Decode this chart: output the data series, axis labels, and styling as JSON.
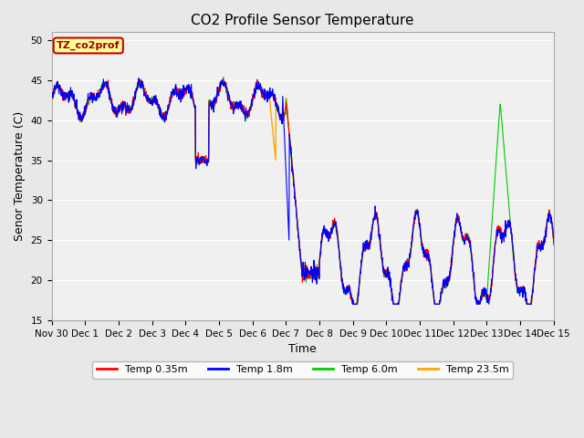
{
  "title": "CO2 Profile Sensor Temperature",
  "xlabel": "Time",
  "ylabel": "Senor Temperature (C)",
  "ylim": [
    15,
    51
  ],
  "yticks": [
    15,
    20,
    25,
    30,
    35,
    40,
    45,
    50
  ],
  "legend_label": "TZ_co2prof",
  "legend_box_color": "#FFFF99",
  "legend_box_edge": "#CC0000",
  "legend_text_color": "#990000",
  "bg_color": "#E8E8E8",
  "plot_bg_color": "#F0F0F0",
  "line_colors": {
    "temp035": "#FF0000",
    "temp18": "#0000FF",
    "temp60": "#00CC00",
    "temp235": "#FFA500"
  },
  "line_labels": {
    "temp035": "Temp 0.35m",
    "temp18": "Temp 1.8m",
    "temp60": "Temp 6.0m",
    "temp235": "Temp 23.5m"
  },
  "xticklabels": [
    "Nov 30",
    "Dec 1",
    "Dec 2",
    "Dec 3",
    "Dec 4",
    "Dec 5",
    "Dec 6",
    "Dec 7",
    "Dec 8",
    "Dec 9",
    "Dec 10",
    "Dec 11",
    "Dec 12",
    "Dec 13",
    "Dec 14",
    "Dec 15"
  ],
  "num_points": 1500
}
